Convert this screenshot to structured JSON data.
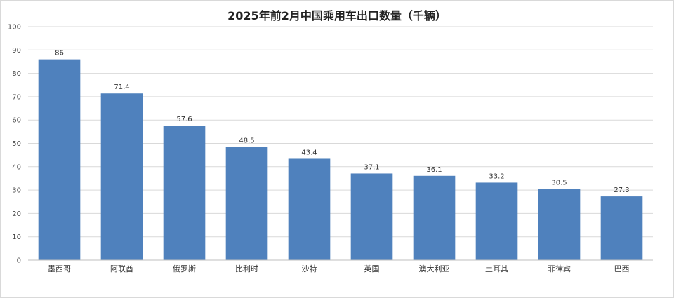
{
  "chart_data": {
    "type": "bar",
    "title": "2025年前2月中国乘用车出口数量（千辆）",
    "categories": [
      "墨西哥",
      "阿联酋",
      "俄罗斯",
      "比利时",
      "沙特",
      "英国",
      "澳大利亚",
      "土耳其",
      "菲律宾",
      "巴西"
    ],
    "values": [
      86,
      71.4,
      57.6,
      48.5,
      43.4,
      37.1,
      36.1,
      33.2,
      30.5,
      27.3
    ],
    "data_labels": [
      "86",
      "71.4",
      "57.6",
      "48.5",
      "43.4",
      "37.1",
      "36.1",
      "33.2",
      "30.5",
      "27.3"
    ],
    "xlabel": "",
    "ylabel": "",
    "ylim": [
      0,
      100
    ],
    "yticks": [
      "0",
      "10",
      "20",
      "30",
      "40",
      "50",
      "60",
      "70",
      "80",
      "90",
      "100"
    ],
    "grid": true,
    "legend": "none",
    "bar_color": "#4f81bd",
    "grid_color": "#d9d9d9"
  }
}
